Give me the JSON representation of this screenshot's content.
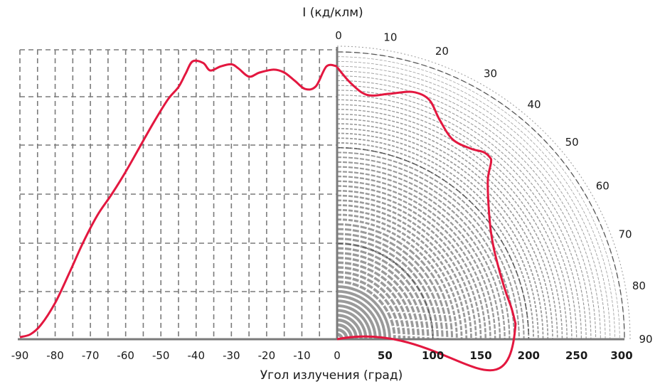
{
  "chart_data": {
    "type": "line",
    "title": "",
    "ylabel": "I (кд/клм)",
    "xlabel": "Угол излучения (град)",
    "left_panel": {
      "kind": "cartesian",
      "xlim": [
        -90,
        0
      ],
      "x_ticks": [
        "-90",
        "-80",
        "-70",
        "-60",
        "-50",
        "-40",
        "-30",
        "-20",
        "-10",
        "0"
      ],
      "grid": true
    },
    "right_panel": {
      "kind": "polar",
      "radius_ticks": [
        "50",
        "100",
        "150",
        "200",
        "250",
        "300"
      ],
      "angle_ticks": [
        "0",
        "10",
        "20",
        "30",
        "40",
        "50",
        "60",
        "70",
        "80",
        "90"
      ],
      "rlim": [
        0,
        300
      ],
      "grid": true
    },
    "series": [
      {
        "color": "#e3173f",
        "cartesian_points": [
          {
            "x": -90,
            "y": 5
          },
          {
            "x": -87,
            "y": 12
          },
          {
            "x": -84,
            "y": 35
          },
          {
            "x": -80,
            "y": 88
          },
          {
            "x": -76,
            "y": 160
          },
          {
            "x": -72,
            "y": 235
          },
          {
            "x": -68,
            "y": 300
          },
          {
            "x": -64,
            "y": 350
          },
          {
            "x": -60,
            "y": 405
          },
          {
            "x": -56,
            "y": 465
          },
          {
            "x": -52,
            "y": 525
          },
          {
            "x": -48,
            "y": 580
          },
          {
            "x": -45,
            "y": 610
          },
          {
            "x": -43,
            "y": 642
          },
          {
            "x": -41,
            "y": 672
          },
          {
            "x": -38,
            "y": 668
          },
          {
            "x": -36,
            "y": 650
          },
          {
            "x": -33,
            "y": 660
          },
          {
            "x": -30,
            "y": 665
          },
          {
            "x": -28,
            "y": 655
          },
          {
            "x": -25,
            "y": 635
          },
          {
            "x": -22,
            "y": 645
          },
          {
            "x": -18,
            "y": 652
          },
          {
            "x": -15,
            "y": 645
          },
          {
            "x": -12,
            "y": 625
          },
          {
            "x": -9,
            "y": 605
          },
          {
            "x": -6,
            "y": 612
          },
          {
            "x": -3,
            "y": 660
          },
          {
            "x": 0,
            "y": 660
          }
        ],
        "polar_points": [
          {
            "angle": 0,
            "r": 284
          },
          {
            "angle": 3,
            "r": 268
          },
          {
            "angle": 7,
            "r": 257
          },
          {
            "angle": 12,
            "r": 262
          },
          {
            "angle": 17,
            "r": 270
          },
          {
            "angle": 21,
            "r": 268
          },
          {
            "angle": 25,
            "r": 253
          },
          {
            "angle": 30,
            "r": 241
          },
          {
            "angle": 35,
            "r": 243
          },
          {
            "angle": 38,
            "r": 248
          },
          {
            "angle": 40,
            "r": 248
          },
          {
            "angle": 41,
            "r": 245
          },
          {
            "angle": 43,
            "r": 231
          },
          {
            "angle": 46,
            "r": 219
          },
          {
            "angle": 50,
            "r": 207
          },
          {
            "angle": 55,
            "r": 196
          },
          {
            "angle": 60,
            "r": 189
          },
          {
            "angle": 65,
            "r": 185
          },
          {
            "angle": 70,
            "r": 183
          },
          {
            "angle": 75,
            "r": 183
          },
          {
            "angle": 80,
            "r": 185
          },
          {
            "angle": 85,
            "r": 187
          },
          {
            "angle": 90,
            "r": 0
          }
        ]
      }
    ]
  }
}
